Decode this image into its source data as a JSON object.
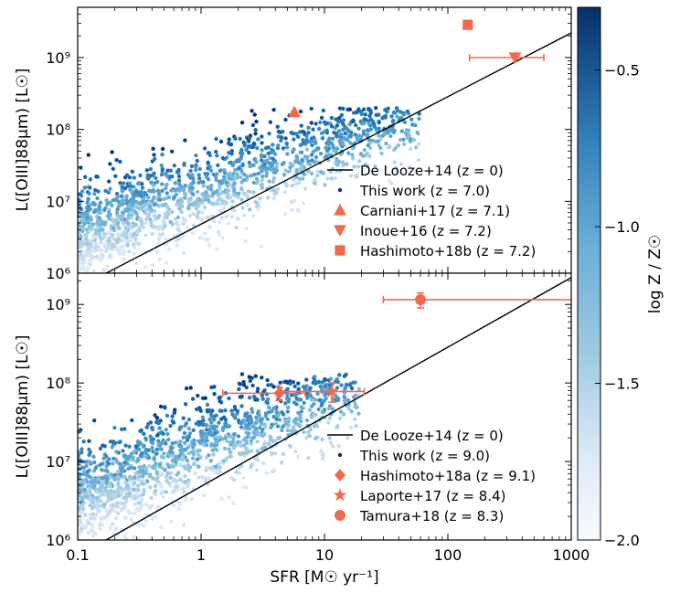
{
  "chart_data": [
    {
      "type": "scatter",
      "panel": "top",
      "xlabel": "",
      "ylabel": "L([OIII]88μm) [L☉]",
      "x_scale": "log",
      "y_scale": "log",
      "xlim": [
        0.1,
        1000
      ],
      "ylim": [
        1000000,
        5000000000
      ],
      "y_ticks": [
        {
          "value": 1000000,
          "label": "10⁶"
        },
        {
          "value": 10000000,
          "label": "10⁷"
        },
        {
          "value": 100000000,
          "label": "10⁸"
        },
        {
          "value": 1000000000,
          "label": "10⁹"
        }
      ],
      "legend_position": "lower-right",
      "legend": [
        {
          "marker": "line",
          "label": "De Looze+14 (z = 0)"
        },
        {
          "marker": "dot",
          "label": "This work (z = 7.0)"
        },
        {
          "marker": "triangle-up",
          "label": "Carniani+17 (z = 7.1)"
        },
        {
          "marker": "triangle-down",
          "label": "Inoue+16 (z = 7.2)"
        },
        {
          "marker": "square",
          "label": "Hashimoto+18b (z = 7.2)"
        }
      ],
      "relation_line": {
        "name": "De Looze+14 (z = 0)",
        "x": [
          0.17,
          1000
        ],
        "y": [
          1000000,
          2200000000
        ]
      },
      "simulation_cloud": {
        "name": "This work (z = 7.0)",
        "x_range": [
          0.1,
          60
        ],
        "y_range": [
          1000000,
          200000000
        ],
        "color_by": "log Z / Z☉"
      },
      "observations": [
        {
          "name": "Carniani+17",
          "marker": "triangle-up",
          "x": 5.7,
          "y": 175000000
        },
        {
          "name": "Inoue+16",
          "marker": "triangle-down",
          "x": 350,
          "y": 1000000000,
          "x_err": [
            150,
            600
          ]
        },
        {
          "name": "Hashimoto+18b",
          "marker": "square",
          "x": 145,
          "y": 2850000000,
          "y_err": [
            2600000000,
            3100000000
          ]
        }
      ]
    },
    {
      "type": "scatter",
      "panel": "bottom",
      "xlabel": "SFR [M☉ yr⁻¹]",
      "ylabel": "L([OIII]88μm) [L☉]",
      "x_scale": "log",
      "y_scale": "log",
      "xlim": [
        0.1,
        1000
      ],
      "ylim": [
        1000000,
        2500000000
      ],
      "x_ticks": [
        {
          "value": 0.1,
          "label": "0.1"
        },
        {
          "value": 1,
          "label": "1"
        },
        {
          "value": 10,
          "label": "10"
        },
        {
          "value": 100,
          "label": "100"
        },
        {
          "value": 1000,
          "label": "1000"
        }
      ],
      "y_ticks": [
        {
          "value": 1000000,
          "label": "10⁶"
        },
        {
          "value": 10000000,
          "label": "10⁷"
        },
        {
          "value": 100000000,
          "label": "10⁸"
        },
        {
          "value": 1000000000,
          "label": "10⁹"
        }
      ],
      "legend_position": "lower-right",
      "legend": [
        {
          "marker": "line",
          "label": "De Looze+14 (z = 0)"
        },
        {
          "marker": "dot",
          "label": "This work (z = 9.0)"
        },
        {
          "marker": "diamond",
          "label": "Hashimoto+18a (z = 9.1)"
        },
        {
          "marker": "star",
          "label": "Laporte+17 (z = 8.4)"
        },
        {
          "marker": "circle",
          "label": "Tamura+18 (z = 8.3)"
        }
      ],
      "relation_line": {
        "name": "De Looze+14 (z = 0)",
        "x": [
          0.17,
          1000
        ],
        "y": [
          1000000,
          2200000000
        ]
      },
      "simulation_cloud": {
        "name": "This work (z = 9.0)",
        "x_range": [
          0.1,
          20
        ],
        "y_range": [
          1000000,
          130000000
        ],
        "color_by": "log Z / Z☉"
      },
      "observations": [
        {
          "name": "Hashimoto+18a",
          "marker": "diamond",
          "x": 4.3,
          "y": 74000000,
          "x_err": [
            1.5,
            7
          ],
          "y_err": [
            60000000,
            88000000
          ]
        },
        {
          "name": "Laporte+17",
          "marker": "star",
          "x": 11.5,
          "y": 78000000,
          "x_err": [
            4.5,
            21
          ],
          "y_err": [
            57000000,
            100000000
          ]
        },
        {
          "name": "Tamura+18",
          "marker": "circle",
          "x": 60,
          "y": 1150000000,
          "x_err": [
            30,
            1000
          ],
          "y_err": [
            900000000,
            1400000000
          ]
        }
      ]
    }
  ],
  "colorbar": {
    "label": "log Z / Z☉",
    "range": [
      -2.0,
      -0.3
    ],
    "ticks": [
      {
        "value": -0.5,
        "label": "−0.5"
      },
      {
        "value": -1.0,
        "label": "−1.0"
      },
      {
        "value": -1.5,
        "label": "−1.5"
      },
      {
        "value": -2.0,
        "label": "−2.0"
      }
    ],
    "color_low": "#f7fbff",
    "color_high": "#08306b"
  },
  "colors": {
    "observations": "#f4694a",
    "relation_line": "#000000"
  }
}
